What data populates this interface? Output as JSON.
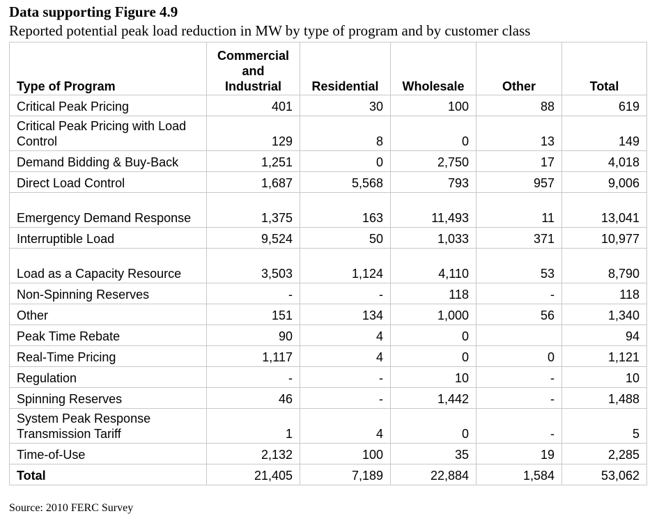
{
  "title": "Data supporting Figure 4.9",
  "subtitle": "Reported potential peak load reduction in MW by type of program and by customer class",
  "table": {
    "headers": [
      "Type of Program",
      "Commercial and Industrial",
      "Residential",
      "Wholesale",
      "Other",
      "Total"
    ],
    "rows": [
      [
        "Critical Peak Pricing",
        "401",
        "30",
        "100",
        "88",
        "619"
      ],
      [
        "Critical Peak Pricing with Load Control",
        "129",
        "8",
        "0",
        "13",
        "149"
      ],
      [
        "Demand Bidding & Buy-Back",
        "1,251",
        "0",
        "2,750",
        "17",
        "4,018"
      ],
      [
        "Direct Load Control",
        "1,687",
        "5,568",
        "793",
        "957",
        "9,006"
      ],
      [
        "Emergency Demand Response",
        "1,375",
        "163",
        "11,493",
        "11",
        "13,041"
      ],
      [
        "Interruptible Load",
        "9,524",
        "50",
        "1,033",
        "371",
        "10,977"
      ],
      [
        "Load as a Capacity Resource",
        "3,503",
        "1,124",
        "4,110",
        "53",
        "8,790"
      ],
      [
        "Non-Spinning Reserves",
        "-",
        "-",
        "118",
        "-",
        "118"
      ],
      [
        "Other",
        "151",
        "134",
        "1,000",
        "56",
        "1,340"
      ],
      [
        "Peak Time Rebate",
        "90",
        "4",
        "0",
        "",
        "94"
      ],
      [
        "Real-Time Pricing",
        "1,117",
        "4",
        "0",
        "0",
        "1,121"
      ],
      [
        "Regulation",
        "-",
        "-",
        "10",
        "-",
        "10"
      ],
      [
        "Spinning Reserves",
        "46",
        "-",
        "1,442",
        "-",
        "1,488"
      ],
      [
        "System Peak Response Transmission Tariff",
        "1",
        "4",
        "0",
        "-",
        "5"
      ],
      [
        "Time-of-Use",
        "2,132",
        "100",
        "35",
        "19",
        "2,285"
      ],
      [
        "Total",
        "21,405",
        "7,189",
        "22,884",
        "1,584",
        "53,062"
      ]
    ]
  },
  "source": "Source: 2010 FERC Survey"
}
